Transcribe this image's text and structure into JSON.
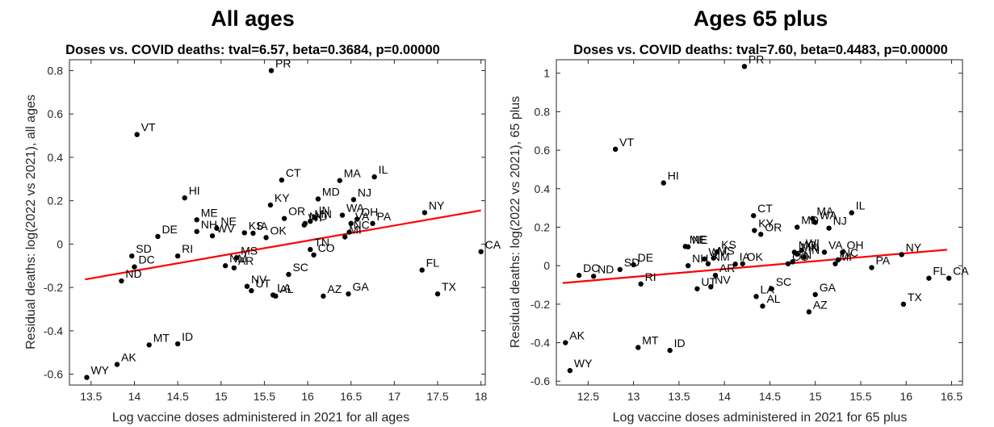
{
  "chart_data": [
    {
      "type": "scatter",
      "title": "All ages",
      "subtitle": "Doses vs. COVID deaths: tval=6.57, beta=0.3684, p=0.00000",
      "xlabel": "Log vaccine doses administered in 2021 for all ages",
      "ylabel": "Residual deaths: log(2022 vs 2021), all ages",
      "xlim": [
        13.25,
        18.05
      ],
      "ylim": [
        -0.65,
        0.85
      ],
      "xticks": [
        13.5,
        14,
        14.5,
        15,
        15.5,
        16,
        16.5,
        17,
        17.5,
        18
      ],
      "xtick_labels": [
        "13.5",
        "14",
        "14.5",
        "15",
        "15.5",
        "16",
        "16.5",
        "17",
        "17.5",
        "18"
      ],
      "yticks": [
        -0.6,
        -0.4,
        -0.2,
        0,
        0.2,
        0.4,
        0.6,
        0.8
      ],
      "ytick_labels": [
        "-0.6",
        "-0.4",
        "-0.2",
        "0",
        "0.2",
        "0.4",
        "0.6",
        "0.8"
      ],
      "fit_line": {
        "x": [
          13.43,
          18.0
        ],
        "y": [
          -0.163,
          0.155
        ],
        "color": "#ff0000"
      },
      "points": [
        {
          "label": "PR",
          "x": 15.58,
          "y": 0.8
        },
        {
          "label": "VT",
          "x": 14.03,
          "y": 0.505
        },
        {
          "label": "HI",
          "x": 14.58,
          "y": 0.213
        },
        {
          "label": "CT",
          "x": 15.7,
          "y": 0.295
        },
        {
          "label": "MA",
          "x": 16.37,
          "y": 0.293
        },
        {
          "label": "IL",
          "x": 16.77,
          "y": 0.31
        },
        {
          "label": "MD",
          "x": 16.12,
          "y": 0.208
        },
        {
          "label": "NJ",
          "x": 16.53,
          "y": 0.205
        },
        {
          "label": "KY",
          "x": 15.57,
          "y": 0.18
        },
        {
          "label": "WA",
          "x": 16.4,
          "y": 0.133
        },
        {
          "label": "OH",
          "x": 16.57,
          "y": 0.115
        },
        {
          "label": "VA",
          "x": 16.5,
          "y": 0.095
        },
        {
          "label": "NY",
          "x": 17.35,
          "y": 0.145
        },
        {
          "label": "PA",
          "x": 16.75,
          "y": 0.095
        },
        {
          "label": "OR",
          "x": 15.73,
          "y": 0.118
        },
        {
          "label": "WI",
          "x": 15.96,
          "y": 0.088
        },
        {
          "label": "MN",
          "x": 16.03,
          "y": 0.105
        },
        {
          "label": "MO",
          "x": 15.97,
          "y": 0.095
        },
        {
          "label": "IN",
          "x": 16.08,
          "y": 0.122
        },
        {
          "label": "NC",
          "x": 16.48,
          "y": 0.055
        },
        {
          "label": "MI",
          "x": 16.43,
          "y": 0.033
        },
        {
          "label": "ME",
          "x": 14.72,
          "y": 0.112
        },
        {
          "label": "NE",
          "x": 14.95,
          "y": 0.073
        },
        {
          "label": "NH",
          "x": 14.72,
          "y": 0.058
        },
        {
          "label": "WV",
          "x": 14.9,
          "y": 0.038
        },
        {
          "label": "DE",
          "x": 14.27,
          "y": 0.035
        },
        {
          "label": "KS",
          "x": 15.27,
          "y": 0.052
        },
        {
          "label": "IA",
          "x": 15.37,
          "y": 0.05
        },
        {
          "label": "OK",
          "x": 15.52,
          "y": 0.03
        },
        {
          "label": "SD",
          "x": 13.97,
          "y": -0.055
        },
        {
          "label": "RI",
          "x": 14.5,
          "y": -0.055
        },
        {
          "label": "DC",
          "x": 14.0,
          "y": -0.105
        },
        {
          "label": "ND",
          "x": 13.85,
          "y": -0.17
        },
        {
          "label": "MS",
          "x": 15.18,
          "y": -0.063
        },
        {
          "label": "NM",
          "x": 15.05,
          "y": -0.1
        },
        {
          "label": "AR",
          "x": 15.15,
          "y": -0.11
        },
        {
          "label": "TN",
          "x": 16.03,
          "y": -0.025
        },
        {
          "label": "CO",
          "x": 16.07,
          "y": -0.05
        },
        {
          "label": "SC",
          "x": 15.78,
          "y": -0.14
        },
        {
          "label": "NV",
          "x": 15.3,
          "y": -0.195
        },
        {
          "label": "UT",
          "x": 15.35,
          "y": -0.215
        },
        {
          "label": "LA",
          "x": 15.6,
          "y": -0.235
        },
        {
          "label": "AL",
          "x": 15.63,
          "y": -0.24
        },
        {
          "label": "AZ",
          "x": 16.18,
          "y": -0.24
        },
        {
          "label": "GA",
          "x": 16.47,
          "y": -0.23
        },
        {
          "label": "FL",
          "x": 17.32,
          "y": -0.12
        },
        {
          "label": "TX",
          "x": 17.5,
          "y": -0.23
        },
        {
          "label": "CA",
          "x": 18.0,
          "y": -0.035
        },
        {
          "label": "MT",
          "x": 14.17,
          "y": -0.465
        },
        {
          "label": "ID",
          "x": 14.5,
          "y": -0.46
        },
        {
          "label": "AK",
          "x": 13.8,
          "y": -0.555
        },
        {
          "label": "WY",
          "x": 13.45,
          "y": -0.615
        }
      ]
    },
    {
      "type": "scatter",
      "title": "Ages 65 plus",
      "subtitle": "Doses vs. COVID deaths: tval=7.60, beta=0.4483, p=0.00000",
      "xlabel": "Log vaccine doses administered in 2021 for 65 plus",
      "ylabel": "Residual deaths: log(2022 vs 2021), 65 plus",
      "xlim": [
        12.15,
        16.62
      ],
      "ylim": [
        -0.62,
        1.07
      ],
      "xticks": [
        12.5,
        13,
        13.5,
        14,
        14.5,
        15,
        15.5,
        16,
        16.5
      ],
      "xtick_labels": [
        "12.5",
        "13",
        "13.5",
        "14",
        "14.5",
        "15",
        "15.5",
        "16",
        "16.5"
      ],
      "yticks": [
        -0.6,
        -0.4,
        -0.2,
        0,
        0.2,
        0.4,
        0.6,
        0.8,
        1
      ],
      "ytick_labels": [
        "-0.6",
        "-0.4",
        "-0.2",
        "0",
        "0.2",
        "0.4",
        "0.6",
        "0.8",
        "1"
      ],
      "fit_line": {
        "x": [
          12.22,
          16.45
        ],
        "y": [
          -0.09,
          0.083
        ],
        "color": "#ff0000"
      },
      "points": [
        {
          "label": "PR",
          "x": 14.22,
          "y": 1.035
        },
        {
          "label": "VT",
          "x": 12.8,
          "y": 0.605
        },
        {
          "label": "HI",
          "x": 13.33,
          "y": 0.43
        },
        {
          "label": "CT",
          "x": 14.32,
          "y": 0.26
        },
        {
          "label": "IL",
          "x": 15.4,
          "y": 0.275
        },
        {
          "label": "MA",
          "x": 14.97,
          "y": 0.245
        },
        {
          "label": "WA",
          "x": 15.0,
          "y": 0.225
        },
        {
          "label": "MD",
          "x": 14.8,
          "y": 0.2
        },
        {
          "label": "NJ",
          "x": 15.15,
          "y": 0.195
        },
        {
          "label": "KY",
          "x": 14.33,
          "y": 0.183
        },
        {
          "label": "OR",
          "x": 14.4,
          "y": 0.163
        },
        {
          "label": "ME",
          "x": 13.57,
          "y": 0.1
        },
        {
          "label": "NE",
          "x": 13.6,
          "y": 0.098
        },
        {
          "label": "KS",
          "x": 13.92,
          "y": 0.072
        },
        {
          "label": "WV",
          "x": 13.78,
          "y": 0.035
        },
        {
          "label": "MS",
          "x": 13.88,
          "y": 0.04
        },
        {
          "label": "NH",
          "x": 13.6,
          "y": 0.0
        },
        {
          "label": "NM",
          "x": 13.82,
          "y": 0.01
        },
        {
          "label": "IA",
          "x": 14.12,
          "y": 0.008
        },
        {
          "label": "OK",
          "x": 14.2,
          "y": 0.01
        },
        {
          "label": "MO",
          "x": 14.77,
          "y": 0.07
        },
        {
          "label": "WI",
          "x": 14.85,
          "y": 0.08
        },
        {
          "label": "MN",
          "x": 14.8,
          "y": 0.06
        },
        {
          "label": "IN",
          "x": 14.88,
          "y": 0.045
        },
        {
          "label": "VA",
          "x": 15.1,
          "y": 0.07
        },
        {
          "label": "OH",
          "x": 15.3,
          "y": 0.07
        },
        {
          "label": "NC",
          "x": 15.25,
          "y": 0.03
        },
        {
          "label": "MI",
          "x": 15.22,
          "y": 0.01
        },
        {
          "label": "CO",
          "x": 14.7,
          "y": 0.01
        },
        {
          "label": "TN",
          "x": 14.75,
          "y": 0.02
        },
        {
          "label": "PA",
          "x": 15.62,
          "y": -0.01
        },
        {
          "label": "NY",
          "x": 15.95,
          "y": 0.058
        },
        {
          "label": "DC",
          "x": 12.4,
          "y": -0.05
        },
        {
          "label": "ND",
          "x": 12.56,
          "y": -0.055
        },
        {
          "label": "SD",
          "x": 12.85,
          "y": -0.02
        },
        {
          "label": "DE",
          "x": 13.0,
          "y": 0.005
        },
        {
          "label": "RI",
          "x": 13.08,
          "y": -0.095
        },
        {
          "label": "AR",
          "x": 13.9,
          "y": -0.05
        },
        {
          "label": "UT",
          "x": 13.7,
          "y": -0.12
        },
        {
          "label": "NV",
          "x": 13.85,
          "y": -0.11
        },
        {
          "label": "SC",
          "x": 14.52,
          "y": -0.12
        },
        {
          "label": "LA",
          "x": 14.35,
          "y": -0.16
        },
        {
          "label": "AL",
          "x": 14.42,
          "y": -0.21
        },
        {
          "label": "GA",
          "x": 15.0,
          "y": -0.15
        },
        {
          "label": "AZ",
          "x": 14.93,
          "y": -0.24
        },
        {
          "label": "FL",
          "x": 16.25,
          "y": -0.065
        },
        {
          "label": "CA",
          "x": 16.47,
          "y": -0.065
        },
        {
          "label": "TX",
          "x": 15.97,
          "y": -0.2
        },
        {
          "label": "AK",
          "x": 12.25,
          "y": -0.4
        },
        {
          "label": "MT",
          "x": 13.05,
          "y": -0.425
        },
        {
          "label": "ID",
          "x": 13.4,
          "y": -0.44
        },
        {
          "label": "WY",
          "x": 12.3,
          "y": -0.545
        }
      ]
    }
  ]
}
